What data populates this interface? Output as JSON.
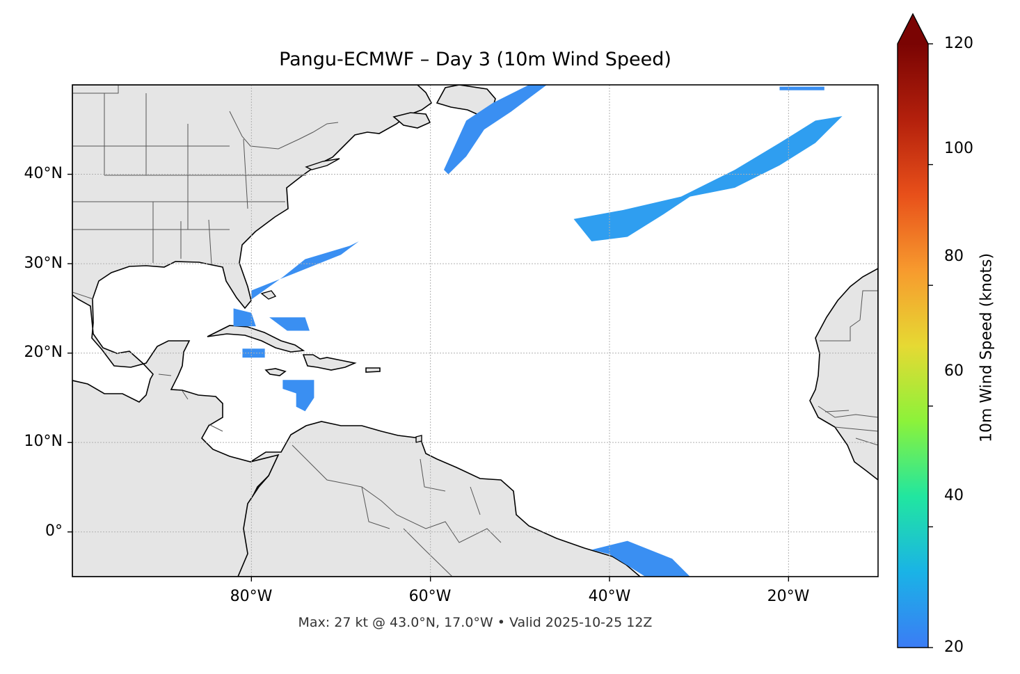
{
  "title": "Pangu-ECMWF – Day 3 (10m Wind Speed)",
  "footnote": "Max: 27 kt @ 43.0°N, 17.0°W • Valid 2025-10-25 12Z",
  "map": {
    "extent_lon": [
      -100,
      -10
    ],
    "extent_lat": [
      -5,
      50
    ],
    "land_color": "#e5e5e5",
    "ocean_color": "#ffffff",
    "coastline_color": "#000000",
    "border_color": "#555555",
    "gridlines": true,
    "lat_ticks": [
      {
        "value": 40,
        "label": "40°N"
      },
      {
        "value": 30,
        "label": "30°N"
      },
      {
        "value": 20,
        "label": "20°N"
      },
      {
        "value": 10,
        "label": "10°N"
      },
      {
        "value": 0,
        "label": "0°"
      }
    ],
    "lon_ticks": [
      {
        "value": -80,
        "label": "80°W"
      },
      {
        "value": -60,
        "label": "60°W"
      },
      {
        "value": -40,
        "label": "40°W"
      },
      {
        "value": -20,
        "label": "20°W"
      }
    ],
    "wind_fields": [
      {
        "name": "north-atlantic-band",
        "color": "#2f9ef0",
        "lonlat": [
          [
            -38.5,
            36
          ],
          [
            -32,
            37.5
          ],
          [
            -26,
            40.5
          ],
          [
            -21,
            43.5
          ],
          [
            -17,
            46
          ],
          [
            -14,
            46.5
          ],
          [
            -17,
            43.5
          ],
          [
            -21,
            41
          ],
          [
            -26,
            38.5
          ],
          [
            -31,
            37.5
          ],
          [
            -34,
            35.5
          ],
          [
            -38,
            33
          ],
          [
            -42,
            32.5
          ],
          [
            -44,
            35
          ]
        ]
      },
      {
        "name": "newfoundland-band",
        "color": "#3a8ff2",
        "lonlat": [
          [
            -56,
            46
          ],
          [
            -53,
            48
          ],
          [
            -49,
            50
          ],
          [
            -47,
            50
          ],
          [
            -51,
            47
          ],
          [
            -54,
            45
          ],
          [
            -56,
            42
          ],
          [
            -58,
            40
          ],
          [
            -58.5,
            40.5
          ]
        ]
      },
      {
        "name": "gulfstream-band",
        "color": "#3a8ff2",
        "lonlat": [
          [
            -80,
            27
          ],
          [
            -75,
            29
          ],
          [
            -70,
            31
          ],
          [
            -68,
            32.5
          ],
          [
            -69,
            32
          ],
          [
            -74,
            30.5
          ],
          [
            -76.5,
            28.5
          ],
          [
            -80,
            26
          ]
        ]
      },
      {
        "name": "bahamas-patch",
        "color": "#3a8ff2",
        "lonlat": [
          [
            -78,
            24
          ],
          [
            -74,
            24
          ],
          [
            -73.5,
            22.5
          ],
          [
            -76,
            22.5
          ]
        ]
      },
      {
        "name": "florida-straits-patch",
        "color": "#3a8ff2",
        "lonlat": [
          [
            -82,
            25
          ],
          [
            -80,
            24.5
          ],
          [
            -79.5,
            23
          ],
          [
            -82,
            23
          ]
        ]
      },
      {
        "name": "caribbean-patch",
        "color": "#3a8ff2",
        "lonlat": [
          [
            -76.5,
            17
          ],
          [
            -73,
            17
          ],
          [
            -73,
            15
          ],
          [
            -74,
            13.5
          ],
          [
            -75,
            14
          ],
          [
            -75,
            15.5
          ],
          [
            -76.5,
            16
          ]
        ]
      },
      {
        "name": "cayman-patch",
        "color": "#3a8ff2",
        "lonlat": [
          [
            -81,
            20.5
          ],
          [
            -78.5,
            20.5
          ],
          [
            -78.5,
            19.5
          ],
          [
            -81,
            19.5
          ]
        ]
      },
      {
        "name": "equatorial-band",
        "color": "#3a8ff2",
        "lonlat": [
          [
            -42,
            -2
          ],
          [
            -38,
            -1
          ],
          [
            -33,
            -3
          ],
          [
            -31,
            -5
          ],
          [
            -36,
            -5
          ],
          [
            -40,
            -2.5
          ]
        ]
      },
      {
        "name": "northeast-sliver",
        "color": "#3a8ff2",
        "lonlat": [
          [
            -21,
            49.8
          ],
          [
            -16,
            49.8
          ],
          [
            -16,
            49.4
          ],
          [
            -21,
            49.4
          ]
        ]
      }
    ]
  },
  "colorbar": {
    "label": "10m Wind Speed (knots)",
    "min": 20,
    "max": 120,
    "extend": "max",
    "ticks": [
      {
        "value": 120,
        "label": "120"
      },
      {
        "value": 100,
        "label": "100"
      },
      {
        "value": 80,
        "label": "80"
      },
      {
        "value": 60,
        "label": "60"
      },
      {
        "value": 40,
        "label": "40"
      },
      {
        "value": 20,
        "label": "20"
      }
    ],
    "colors": [
      "#3b7cf5",
      "#1ab3e6",
      "#21e6a0",
      "#8cf23a",
      "#e6d933",
      "#f79a2e",
      "#e8501a",
      "#b3200c",
      "#7a0403"
    ],
    "extend_color": "#7a0403"
  }
}
